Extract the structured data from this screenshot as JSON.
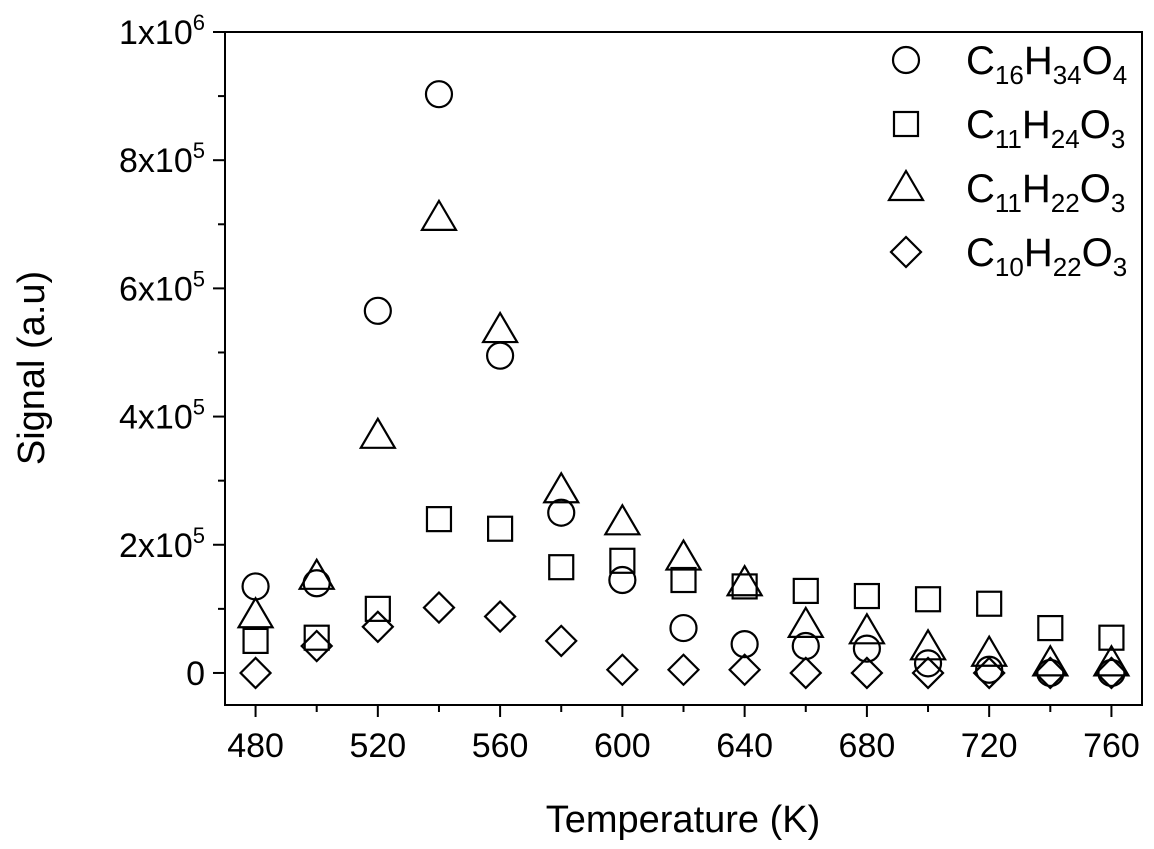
{
  "chart_data": {
    "type": "scatter",
    "title": "",
    "xlabel": "Temperature (K)",
    "ylabel": "Signal (a.u)",
    "xlim": [
      470,
      770
    ],
    "ylim": [
      -50000,
      1000000
    ],
    "x_ticks": [
      {
        "value": 480,
        "label": "480"
      },
      {
        "value": 520,
        "label": "520"
      },
      {
        "value": 560,
        "label": "560"
      },
      {
        "value": 600,
        "label": "600"
      },
      {
        "value": 640,
        "label": "640"
      },
      {
        "value": 680,
        "label": "680"
      },
      {
        "value": 720,
        "label": "720"
      },
      {
        "value": 760,
        "label": "760"
      }
    ],
    "y_ticks": [
      {
        "value": 0,
        "base": "0",
        "exp": ""
      },
      {
        "value": 200000,
        "base": "2x10",
        "exp": "5"
      },
      {
        "value": 400000,
        "base": "4x10",
        "exp": "5"
      },
      {
        "value": 600000,
        "base": "6x10",
        "exp": "5"
      },
      {
        "value": 800000,
        "base": "8x10",
        "exp": "5"
      },
      {
        "value": 1000000,
        "base": "1x10",
        "exp": "6"
      }
    ],
    "grid": false,
    "legend_position": "top-right",
    "x": [
      480,
      500,
      520,
      540,
      560,
      580,
      600,
      620,
      640,
      660,
      680,
      700,
      720,
      740,
      760
    ],
    "series": [
      {
        "name_parts": [
          "C",
          "16",
          "H",
          "34",
          "O",
          "4"
        ],
        "marker": "circle",
        "values": [
          135000,
          140000,
          565000,
          903000,
          495000,
          250000,
          145000,
          70000,
          45000,
          42000,
          38000,
          15000,
          5000,
          0,
          0
        ]
      },
      {
        "name_parts": [
          "C",
          "11",
          "H",
          "24",
          "O",
          "3"
        ],
        "marker": "square",
        "values": [
          50000,
          55000,
          100000,
          240000,
          225000,
          165000,
          175000,
          145000,
          135000,
          128000,
          120000,
          115000,
          108000,
          70000,
          55000
        ]
      },
      {
        "name_parts": [
          "C",
          "11",
          "H",
          "22",
          "O",
          "3"
        ],
        "marker": "triangle",
        "values": [
          90000,
          150000,
          370000,
          710000,
          535000,
          285000,
          235000,
          180000,
          140000,
          75000,
          65000,
          40000,
          30000,
          15000,
          15000
        ]
      },
      {
        "name_parts": [
          "C",
          "10",
          "H",
          "22",
          "O",
          "3"
        ],
        "marker": "diamond",
        "values": [
          0,
          42000,
          72000,
          102000,
          88000,
          50000,
          5000,
          5000,
          5000,
          0,
          0,
          0,
          0,
          0,
          0
        ]
      }
    ]
  }
}
